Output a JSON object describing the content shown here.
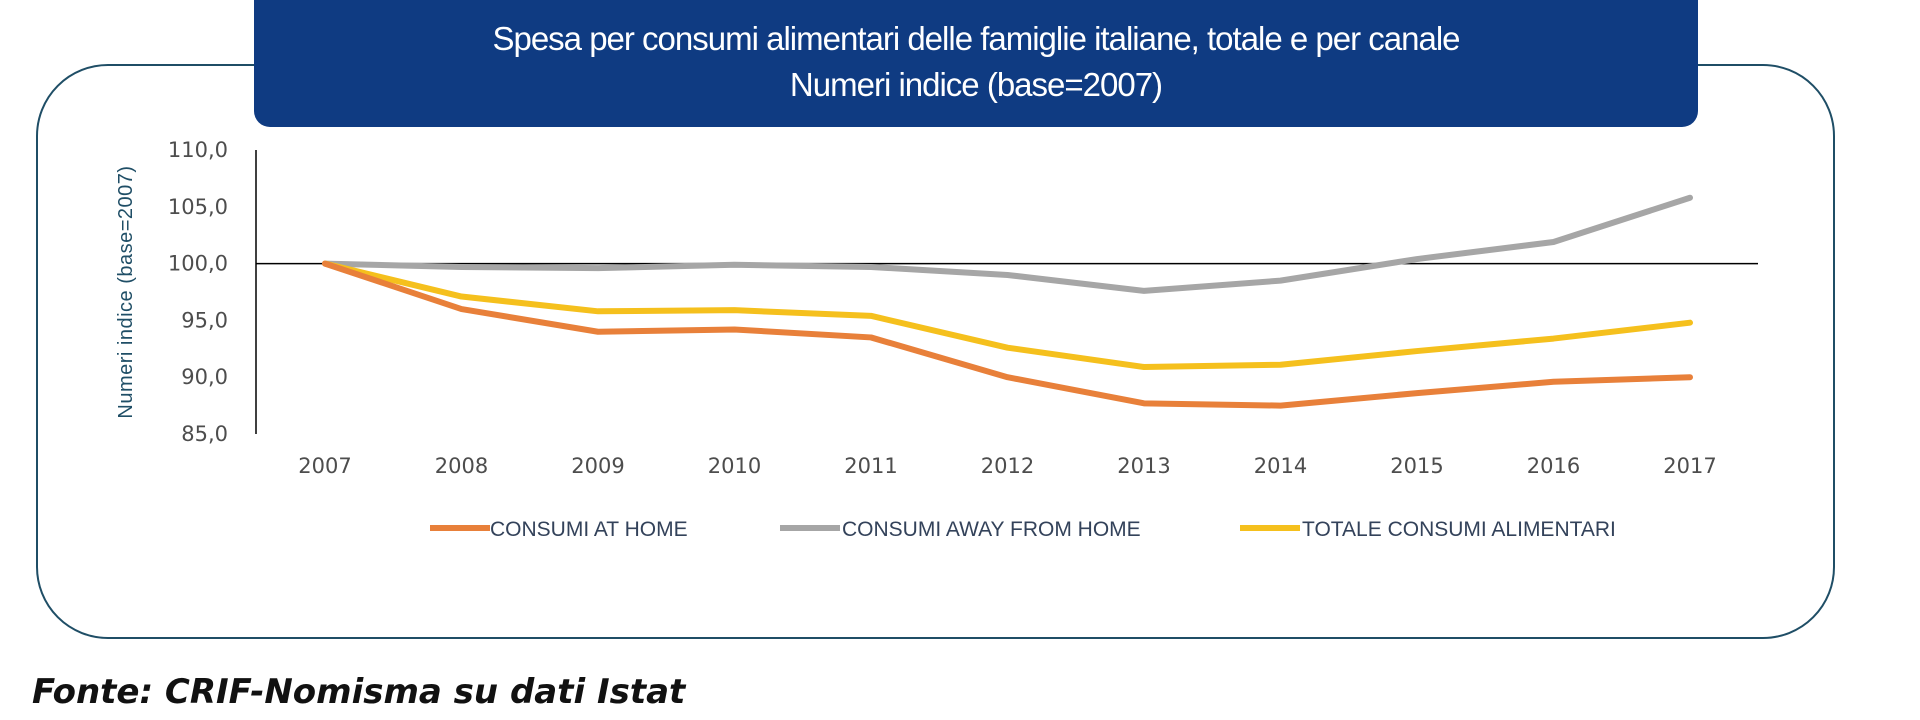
{
  "title": {
    "line1": "Spesa per consumi alimentari delle famiglie italiane, totale e per canale",
    "line2": "Numeri indice (base=2007)"
  },
  "source": "Fonte: CRIF-Nomisma su dati Istat",
  "colors": {
    "banner": "#0f3b82",
    "frame": "#1f4e66",
    "consumi_at_home": "#e8803a",
    "consumi_away": "#a6a6a6",
    "totale": "#f5c01d"
  },
  "chart_data": {
    "type": "line",
    "ylabel": "Numeri indice (base=2007)",
    "ylim": [
      85,
      110
    ],
    "y_ticks": [
      "110,0",
      "105,0",
      "100,0",
      "95,0",
      "90,0",
      "85,0"
    ],
    "y_tick_values": [
      110,
      105,
      100,
      95,
      90,
      85
    ],
    "baseline": 100,
    "categories": [
      "2007",
      "2008",
      "2009",
      "2010",
      "2011",
      "2012",
      "2013",
      "2014",
      "2015",
      "2016",
      "2017"
    ],
    "legend_position": "bottom",
    "series": [
      {
        "name": "CONSUMI AT HOME",
        "color": "#e8803a",
        "values": [
          100.0,
          96.0,
          94.0,
          94.2,
          93.5,
          90.0,
          87.7,
          87.5,
          88.6,
          89.6,
          90.0
        ]
      },
      {
        "name": "CONSUMI AWAY FROM HOME",
        "color": "#a6a6a6",
        "values": [
          100.0,
          99.7,
          99.6,
          99.9,
          99.7,
          99.0,
          97.6,
          98.5,
          100.4,
          101.9,
          105.8
        ]
      },
      {
        "name": "TOTALE CONSUMI ALIMENTARI",
        "color": "#f5c01d",
        "values": [
          100.0,
          97.1,
          95.8,
          95.9,
          95.4,
          92.6,
          90.9,
          91.1,
          92.3,
          93.4,
          94.8
        ]
      }
    ]
  }
}
